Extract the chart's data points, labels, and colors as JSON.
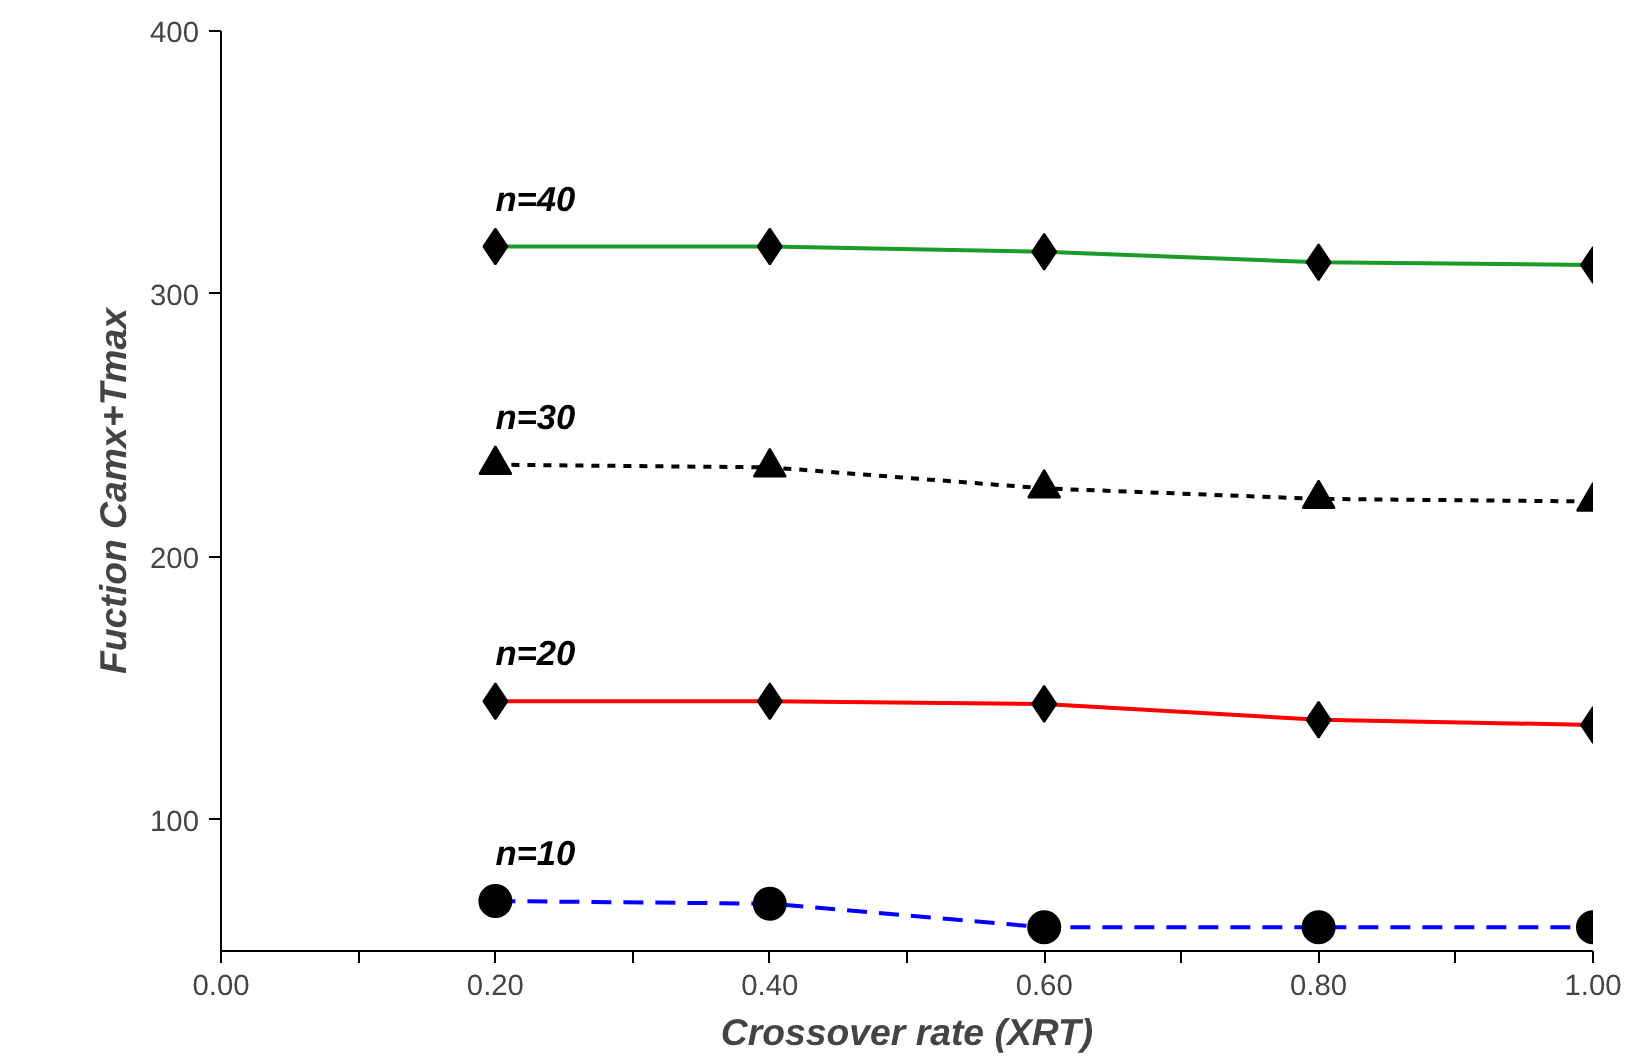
{
  "chart_data": {
    "type": "line",
    "xlabel": "Crossover rate (XRT)",
    "ylabel": "Fuction Camx+Tmax",
    "x": [
      0.2,
      0.4,
      0.6,
      0.8,
      1.0
    ],
    "xlim": [
      0,
      1
    ],
    "ylim": [
      50,
      400
    ],
    "xticks": [
      {
        "value": 0,
        "label": "0.00"
      },
      {
        "value": 0.1,
        "label": null
      },
      {
        "value": 0.2,
        "label": "0.20"
      },
      {
        "value": 0.3,
        "label": null
      },
      {
        "value": 0.4,
        "label": "0.40"
      },
      {
        "value": 0.5,
        "label": null
      },
      {
        "value": 0.6,
        "label": "0.60"
      },
      {
        "value": 0.7,
        "label": null
      },
      {
        "value": 0.8,
        "label": "0.80"
      },
      {
        "value": 0.9,
        "label": null
      },
      {
        "value": 1,
        "label": "1.00"
      }
    ],
    "yticks": [
      100,
      200,
      300,
      400
    ],
    "grid": false,
    "series": [
      {
        "name": "n=40",
        "color": "#1a9c2a",
        "marker": "diamond",
        "line_style": "solid",
        "values": [
          318,
          318,
          316,
          312,
          311
        ]
      },
      {
        "name": "n=30",
        "color": "#000000",
        "marker": "triangle",
        "line_style": "dotted",
        "values": [
          235,
          234,
          226,
          222,
          221
        ]
      },
      {
        "name": "n=20",
        "color": "#ff0000",
        "marker": "diamond",
        "line_style": "solid",
        "values": [
          145,
          145,
          144,
          138,
          136
        ]
      },
      {
        "name": "n=10",
        "color": "#0000ff",
        "marker": "circle",
        "line_style": "dashed",
        "values": [
          69,
          68,
          59,
          59,
          59
        ]
      }
    ]
  }
}
